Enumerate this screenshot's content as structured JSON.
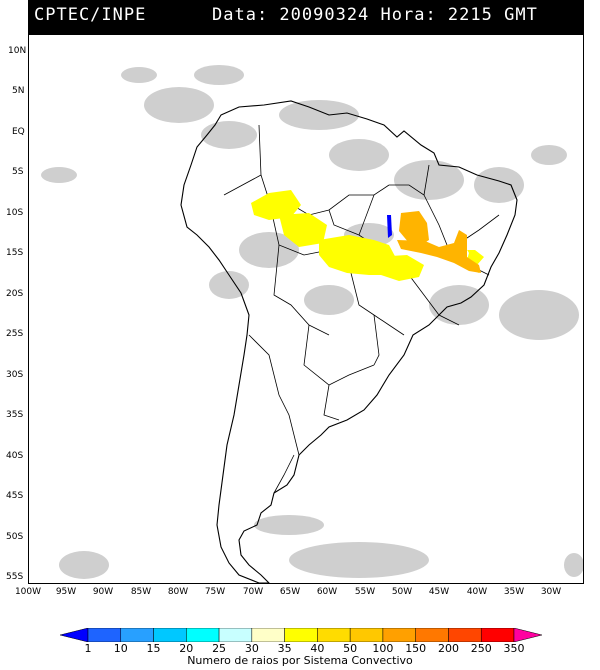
{
  "header": {
    "source": "CPTEC/INPE",
    "date_text": "Data: 20090324 Hora: 2215 GMT"
  },
  "axes": {
    "lat_labels": [
      "10N",
      "5N",
      "EQ",
      "5S",
      "10S",
      "15S",
      "20S",
      "25S",
      "30S",
      "35S",
      "40S",
      "45S",
      "50S",
      "55S"
    ],
    "lon_labels": [
      "100W",
      "95W",
      "90W",
      "85W",
      "80W",
      "75W",
      "70W",
      "65W",
      "60W",
      "55W",
      "50W",
      "45W",
      "40W",
      "35W",
      "30W"
    ]
  },
  "legend": {
    "title": "Numero de raios por Sistema Convectivo",
    "ticks": [
      "1",
      "10",
      "15",
      "20",
      "25",
      "30",
      "35",
      "40",
      "50",
      "100",
      "150",
      "200",
      "250",
      "350"
    ],
    "colors": [
      "#0000ff",
      "#1e64ff",
      "#28a0ff",
      "#00c8ff",
      "#00ffff",
      "#c8ffff",
      "#ffffc8",
      "#ffff00",
      "#ffdc00",
      "#ffc800",
      "#ffa000",
      "#ff7800",
      "#ff4600",
      "#ff0000",
      "#ff00a0"
    ]
  },
  "map": {
    "region": "South America",
    "features": [
      "lightning-clusters",
      "cloud-cover",
      "country-borders",
      "state-borders"
    ]
  }
}
